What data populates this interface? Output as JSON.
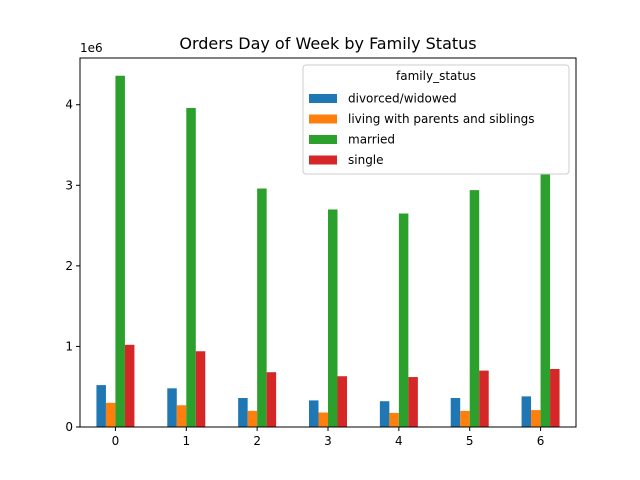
{
  "chart_data": {
    "type": "bar",
    "title": "Orders Day of Week by Family Status",
    "xlabel": "",
    "ylabel": "",
    "y_offset_label": "1e6",
    "y_scale": 1000000,
    "categories": [
      "0",
      "1",
      "2",
      "3",
      "4",
      "5",
      "6"
    ],
    "y_ticks": [
      0,
      1000000,
      2000000,
      3000000,
      4000000
    ],
    "y_tick_labels": [
      "0",
      "1",
      "2",
      "3",
      "4"
    ],
    "ylim": [
      0,
      4580000
    ],
    "legend": {
      "title": "family_status",
      "placement": "top-right"
    },
    "series": [
      {
        "name": "divorced/widowed",
        "color": "#1f77b4",
        "values": [
          520000,
          480000,
          360000,
          330000,
          320000,
          360000,
          380000
        ]
      },
      {
        "name": "living with parents and siblings",
        "color": "#ff7f0e",
        "values": [
          300000,
          270000,
          200000,
          180000,
          175000,
          200000,
          210000
        ]
      },
      {
        "name": "married",
        "color": "#2ca02c",
        "values": [
          4360000,
          3960000,
          2960000,
          2700000,
          2650000,
          2940000,
          3150000
        ]
      },
      {
        "name": "single",
        "color": "#d62728",
        "values": [
          1020000,
          940000,
          680000,
          630000,
          620000,
          700000,
          720000
        ]
      }
    ],
    "grid": false
  }
}
